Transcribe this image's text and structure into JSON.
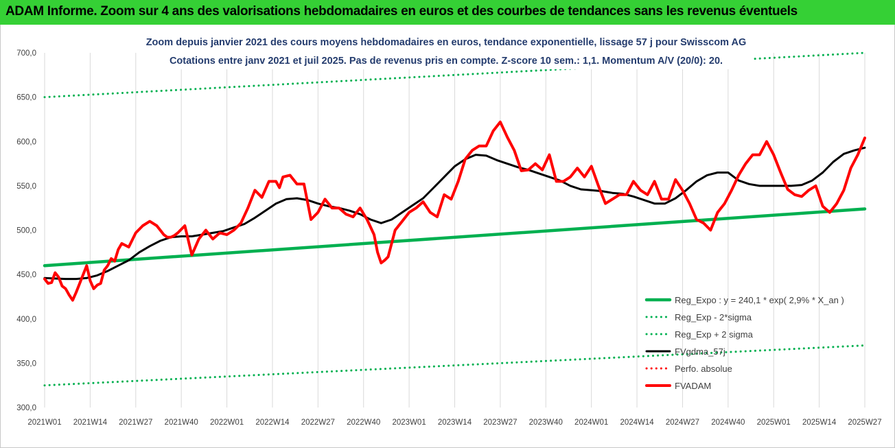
{
  "banner": {
    "text": "ADAM Informe. Zoom sur 4 ans des valorisations hebdomadaires en euros et des courbes de tendances sans les revenus éventuels",
    "background": "#35d035"
  },
  "chart_data": {
    "type": "line",
    "title": "Zoom depuis janvier 2021 des cours moyens hebdomadaires en euros, tendance exponentielle, lissage 57 j pour Swisscom AG",
    "subtitle": "Cotations entre janv 2021 et juil 2025. Pas de revenus pris en compte. Z-score 10 sem.: 1,1. Momentum A/V (20/0): 20.",
    "xlabel": "",
    "ylabel": "",
    "ylim": [
      300,
      700
    ],
    "yticks": [
      "300,0",
      "350,0",
      "400,0",
      "450,0",
      "500,0",
      "550,0",
      "600,0",
      "650,0",
      "700,0"
    ],
    "categories": [
      "2021W01",
      "2021W14",
      "2021W27",
      "2021W40",
      "2022W01",
      "2022W14",
      "2022W27",
      "2022W40",
      "2023W01",
      "2023W14",
      "2023W27",
      "2023W40",
      "2024W01",
      "2024W14",
      "2024W27",
      "2024W40",
      "2025W01",
      "2025W14",
      "2025W27"
    ],
    "grid": "vertical",
    "legend_position": "bottom-right",
    "series": [
      {
        "name": "Reg_Expo : y = 240,1 * exp( 2,9% *  X_an )",
        "color": "#00b050",
        "style": "solid",
        "x": [
          0,
          234
        ],
        "y": [
          460,
          524
        ]
      },
      {
        "name": "Reg_Exp - 2*sigma",
        "color": "#00b050",
        "style": "dotted",
        "x": [
          0,
          234
        ],
        "y": [
          325,
          370
        ]
      },
      {
        "name": "Reg_Exp + 2 sigma",
        "color": "#00b050",
        "style": "dotted",
        "x": [
          0,
          234
        ],
        "y": [
          650,
          700
        ]
      },
      {
        "name": "FVgdma_57j",
        "color": "#000000",
        "style": "solid",
        "x": [
          0,
          6,
          9,
          12,
          15,
          18,
          21,
          24,
          27,
          30,
          33,
          36,
          39,
          42,
          45,
          48,
          51,
          54,
          57,
          60,
          63,
          66,
          69,
          72,
          75,
          78,
          81,
          84,
          87,
          90,
          93,
          96,
          99,
          102,
          105,
          108,
          111,
          114,
          117,
          120,
          123,
          126,
          129,
          132,
          135,
          138,
          141,
          144,
          147,
          150,
          153,
          156,
          159,
          162,
          165,
          168,
          171,
          174,
          177,
          180,
          183,
          186,
          189,
          192,
          195,
          198,
          201,
          204,
          207,
          210,
          213,
          216,
          219,
          222,
          225,
          228,
          231,
          234
        ],
        "y": [
          446,
          445,
          445,
          446,
          449,
          454,
          460,
          466,
          475,
          482,
          488,
          492,
          493,
          493,
          495,
          497,
          499,
          503,
          507,
          514,
          522,
          530,
          535,
          536,
          534,
          530,
          527,
          525,
          522,
          518,
          512,
          508,
          512,
          520,
          528,
          536,
          548,
          560,
          572,
          580,
          585,
          584,
          579,
          575,
          571,
          568,
          564,
          560,
          556,
          550,
          546,
          545,
          544,
          542,
          541,
          538,
          534,
          530,
          530,
          536,
          545,
          555,
          562,
          565,
          565,
          556,
          552,
          550,
          550,
          550,
          550,
          551,
          556,
          565,
          577,
          586,
          590,
          593
        ]
      },
      {
        "name": "Perfo. absolue",
        "color": "#ff0000",
        "style": "dotted",
        "x": [],
        "y": []
      },
      {
        "name": "FVADAM",
        "color": "#ff0000",
        "style": "solid",
        "x": [
          0,
          1,
          2,
          3,
          4,
          5,
          6,
          7,
          8,
          9,
          10,
          11,
          12,
          13,
          14,
          15,
          16,
          17,
          18,
          19,
          20,
          21,
          22,
          24,
          26,
          28,
          30,
          32,
          34,
          35,
          36,
          37,
          38,
          40,
          42,
          44,
          46,
          48,
          50,
          52,
          54,
          56,
          58,
          60,
          62,
          64,
          66,
          67,
          68,
          70,
          72,
          74,
          76,
          78,
          80,
          82,
          84,
          86,
          88,
          90,
          92,
          94,
          95,
          96,
          97,
          98,
          100,
          102,
          104,
          106,
          108,
          110,
          112,
          114,
          116,
          118,
          120,
          122,
          124,
          126,
          128,
          130,
          132,
          134,
          136,
          138,
          140,
          142,
          144,
          146,
          148,
          150,
          152,
          154,
          156,
          158,
          160,
          162,
          164,
          166,
          168,
          170,
          172,
          174,
          176,
          178,
          180,
          182,
          184,
          186,
          188,
          190,
          192,
          194,
          196,
          198,
          200,
          202,
          204,
          206,
          208,
          210,
          212,
          214,
          216,
          218,
          220,
          222,
          224,
          226,
          228,
          230,
          232,
          234
        ],
        "y": [
          445,
          440,
          441,
          452,
          447,
          437,
          434,
          427,
          421,
          430,
          440,
          450,
          460,
          443,
          434,
          438,
          440,
          455,
          460,
          468,
          465,
          478,
          485,
          481,
          497,
          505,
          510,
          505,
          495,
          492,
          492,
          494,
          497,
          505,
          472,
          490,
          500,
          490,
          497,
          495,
          500,
          508,
          525,
          545,
          537,
          555,
          555,
          548,
          560,
          562,
          552,
          552,
          512,
          520,
          535,
          525,
          525,
          518,
          515,
          525,
          512,
          495,
          475,
          463,
          466,
          470,
          500,
          510,
          520,
          525,
          532,
          520,
          515,
          540,
          535,
          555,
          580,
          590,
          595,
          595,
          612,
          622,
          605,
          590,
          567,
          568,
          575,
          568,
          585,
          555,
          555,
          560,
          570,
          560,
          572,
          550,
          530,
          535,
          540,
          540,
          555,
          545,
          540,
          555,
          535,
          535,
          557,
          545,
          530,
          512,
          508,
          500,
          520,
          530,
          545,
          562,
          575,
          585,
          585,
          600,
          585,
          565,
          546,
          540,
          538,
          545,
          550,
          527,
          520,
          530,
          545,
          570,
          585,
          604
        ]
      }
    ]
  }
}
